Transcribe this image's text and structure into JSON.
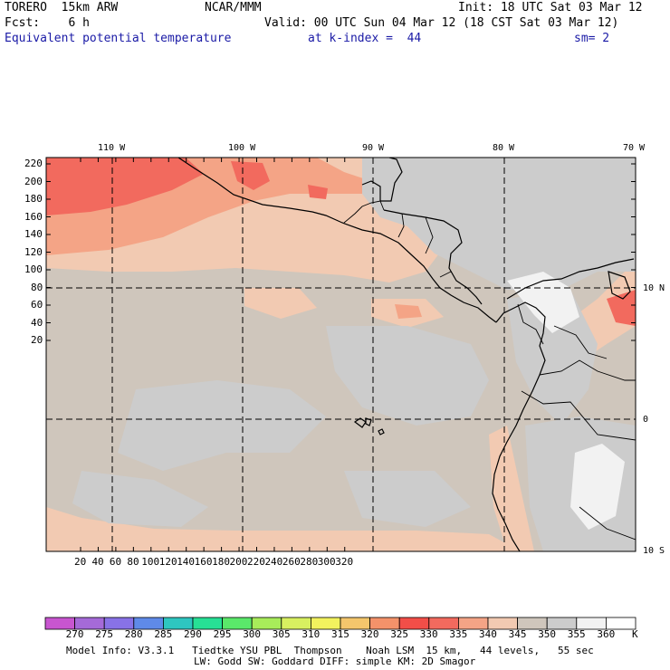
{
  "header": {
    "model": "TORERO  15km ARW",
    "org": "NCAR/MMM",
    "init": "Init: 18 UTC Sat 03 Mar 12",
    "fcst": "Fcst:    6 h",
    "valid": "Valid: 00 UTC Sun 04 Mar 12 (18 CST Sat 03 Mar 12)",
    "field": "Equivalent potential temperature",
    "level": "at k-index =  44",
    "smooth": "sm= 2"
  },
  "map": {
    "lon_labels": [
      "110 W",
      "100 W",
      "90 W",
      "80 W",
      "70 W"
    ],
    "lat_labels": [
      "10 N",
      "0",
      "10 S"
    ],
    "y_ticks": [
      "220",
      "200",
      "180",
      "160",
      "140",
      "120",
      "100",
      "80",
      "60",
      "40",
      "20"
    ],
    "x_ticks": [
      "20",
      "40",
      "60",
      "80",
      "100",
      "120",
      "140",
      "160",
      "180",
      "200",
      "220",
      "240",
      "260",
      "280",
      "300",
      "320"
    ]
  },
  "legend": {
    "values": [
      "270",
      "275",
      "280",
      "285",
      "290",
      "295",
      "300",
      "305",
      "310",
      "315",
      "320",
      "325",
      "330",
      "335",
      "340",
      "345",
      "350",
      "355",
      "360"
    ],
    "unit": "K",
    "colors": [
      "#c855d0",
      "#a56ad8",
      "#8872e6",
      "#5f8ae8",
      "#2ec6c0",
      "#27e095",
      "#5ae86a",
      "#a8ec5a",
      "#d8f060",
      "#f2f25e",
      "#f4c66c",
      "#f4926a",
      "#f24e48",
      "#f26a5e",
      "#f4a486",
      "#f2cab2",
      "#cfc6bc",
      "#cccccc",
      "#f2f2f2"
    ]
  },
  "footer": {
    "line1": "Model Info: V3.3.1   Tiedtke YSU PBL  Thompson    Noah LSM  15 km,   44 levels,   55 sec",
    "line2": "LW: Godd SW: Goddard DIFF: simple KM: 2D Smagor"
  }
}
